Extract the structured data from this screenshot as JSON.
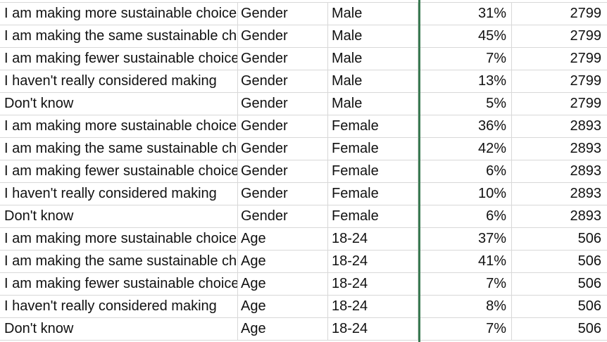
{
  "rows": [
    {
      "response": "I am making more sustainable choices",
      "group": "Gender",
      "segment": "Male",
      "percent": "31%",
      "base": "2799"
    },
    {
      "response": "I am making the same sustainable choices",
      "group": "Gender",
      "segment": "Male",
      "percent": "45%",
      "base": "2799"
    },
    {
      "response": "I am making fewer sustainable choices",
      "group": "Gender",
      "segment": "Male",
      "percent": "7%",
      "base": "2799"
    },
    {
      "response": "I haven't really considered making",
      "group": "Gender",
      "segment": "Male",
      "percent": "13%",
      "base": "2799"
    },
    {
      "response": "Don't know",
      "group": "Gender",
      "segment": "Male",
      "percent": "5%",
      "base": "2799"
    },
    {
      "response": "I am making more sustainable choices",
      "group": "Gender",
      "segment": "Female",
      "percent": "36%",
      "base": "2893"
    },
    {
      "response": "I am making the same sustainable choices",
      "group": "Gender",
      "segment": "Female",
      "percent": "42%",
      "base": "2893"
    },
    {
      "response": "I am making fewer sustainable choices",
      "group": "Gender",
      "segment": "Female",
      "percent": "6%",
      "base": "2893"
    },
    {
      "response": "I haven't really considered making",
      "group": "Gender",
      "segment": "Female",
      "percent": "10%",
      "base": "2893"
    },
    {
      "response": "Don't know",
      "group": "Gender",
      "segment": "Female",
      "percent": "6%",
      "base": "2893"
    },
    {
      "response": "I am making more sustainable choices",
      "group": "Age",
      "segment": "18-24",
      "percent": "37%",
      "base": "506"
    },
    {
      "response": "I am making the same sustainable choices",
      "group": "Age",
      "segment": "18-24",
      "percent": "41%",
      "base": "506"
    },
    {
      "response": "I am making fewer sustainable choices",
      "group": "Age",
      "segment": "18-24",
      "percent": "7%",
      "base": "506"
    },
    {
      "response": "I haven't really considered making",
      "group": "Age",
      "segment": "18-24",
      "percent": "8%",
      "base": "506"
    },
    {
      "response": "Don't know",
      "group": "Age",
      "segment": "18-24",
      "percent": "7%",
      "base": "506"
    }
  ],
  "colors": {
    "grid": "#d8d8d8",
    "freeze_line": "#3a7a52",
    "text": "#111111"
  }
}
